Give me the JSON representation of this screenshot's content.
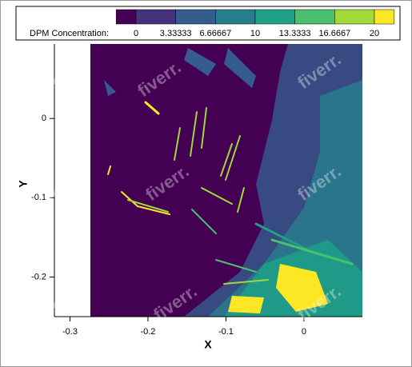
{
  "chart_data": {
    "type": "contour",
    "xlabel": "X",
    "ylabel": "Y",
    "xlim": [
      -0.32,
      0.075
    ],
    "ylim": [
      -0.25,
      0.094
    ],
    "xticks": [
      -0.3,
      -0.2,
      -0.1,
      0
    ],
    "yticks": [
      -0.2,
      -0.1,
      0
    ],
    "colorbar": {
      "title": "DPM Concentration:",
      "ticks": [
        0,
        3.33333,
        6.66667,
        10,
        13.3333,
        16.6667,
        20
      ],
      "colors": [
        "#440154",
        "#46327e",
        "#365c8d",
        "#277f8e",
        "#1fa187",
        "#4ac16d",
        "#a0da39",
        "#fde725"
      ]
    },
    "watermark": "fiverr."
  }
}
